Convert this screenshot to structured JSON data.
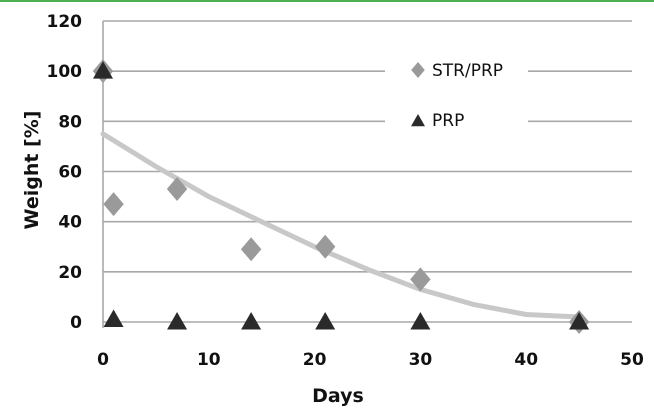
{
  "chart_data": {
    "type": "scatter",
    "xlabel": "Days",
    "ylabel": "Weight [%]",
    "xlim": [
      0,
      50
    ],
    "ylim": [
      0,
      120
    ],
    "xticks": [
      0,
      10,
      20,
      30,
      40,
      50
    ],
    "yticks": [
      0,
      20,
      40,
      60,
      80,
      100,
      120
    ],
    "grid": "horizontal",
    "legend_position": "top-right",
    "series": [
      {
        "name": "STR/PRP",
        "marker": "diamond",
        "color": "#9a9a9a",
        "x": [
          0,
          1,
          7,
          14,
          21,
          30,
          45
        ],
        "y": [
          100,
          47,
          53,
          29,
          30,
          17,
          0
        ]
      },
      {
        "name": "PRP",
        "marker": "triangle",
        "color": "#2a2a2a",
        "x": [
          0,
          1,
          7,
          14,
          21,
          30,
          45
        ],
        "y": [
          100,
          1,
          0,
          0,
          0,
          0,
          0
        ]
      }
    ],
    "trendline": {
      "color": "#c8c8c8",
      "x": [
        0,
        5,
        10,
        15,
        20,
        25,
        30,
        35,
        40,
        45
      ],
      "y": [
        75,
        62,
        50,
        40,
        30,
        21,
        13,
        7,
        3,
        2
      ]
    }
  }
}
